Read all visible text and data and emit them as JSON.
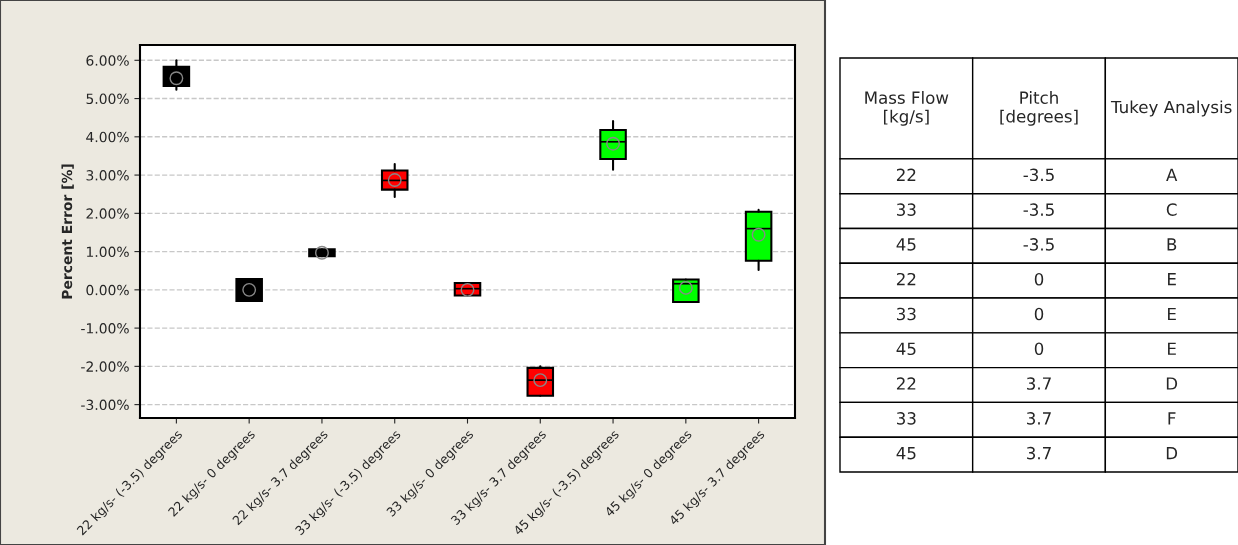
{
  "chart_data": [
    {
      "type": "box",
      "ylabel": "Percent Error [%]",
      "categories": [
        "22 kg/s- (-3.5) degrees",
        "22 kg/s- 0 degrees",
        "22 kg/s- 3.7 degrees",
        "33 kg/s- (-3.5) degrees",
        "33 kg/s- 0 degrees",
        "33 kg/s- 3.7 degrees",
        "45 kg/s- (-3.5) degrees",
        "45 kg/s- 0 degrees",
        "45 kg/s- 3.7 degrees"
      ],
      "boxes": [
        {
          "low": 5.23,
          "q1": 5.33,
          "median": 5.55,
          "q3": 5.83,
          "high": 6.0,
          "mean": 5.53
        },
        {
          "low": -0.29,
          "q1": -0.29,
          "median": 0.0,
          "q3": 0.28,
          "high": 0.28,
          "mean": 0.0
        },
        {
          "low": 0.88,
          "q1": 0.88,
          "median": 0.97,
          "q3": 1.06,
          "high": 1.06,
          "mean": 0.97
        },
        {
          "low": 2.43,
          "q1": 2.62,
          "median": 2.86,
          "q3": 3.12,
          "high": 3.29,
          "mean": 2.87
        },
        {
          "low": -0.15,
          "q1": -0.15,
          "median": 0.03,
          "q3": 0.18,
          "high": 0.18,
          "mean": 0.0
        },
        {
          "low": -2.77,
          "q1": -2.77,
          "median": -2.36,
          "q3": -2.04,
          "high": -2.0,
          "mean": -2.36
        },
        {
          "low": 3.14,
          "q1": 3.42,
          "median": 3.87,
          "q3": 4.18,
          "high": 4.41,
          "mean": 3.82
        },
        {
          "low": -0.32,
          "q1": -0.32,
          "median": 0.16,
          "q3": 0.27,
          "high": 0.27,
          "mean": 0.05
        },
        {
          "low": 0.52,
          "q1": 0.76,
          "median": 1.6,
          "q3": 2.04,
          "high": 2.09,
          "mean": 1.44
        }
      ],
      "colors": [
        "#000000",
        "#000000",
        "#000000",
        "#ff0000",
        "#ff0000",
        "#ff0000",
        "#00ff00",
        "#00ff00",
        "#00ff00"
      ],
      "ylim": [
        -3.35,
        6.4
      ],
      "yticks": [
        {
          "value": -3,
          "label": "-3.00%"
        },
        {
          "value": -2,
          "label": "-2.00%"
        },
        {
          "value": -1,
          "label": "-1.00%"
        },
        {
          "value": 0,
          "label": "0.00%"
        },
        {
          "value": 1,
          "label": "1.00%"
        },
        {
          "value": 2,
          "label": "2.00%"
        },
        {
          "value": 3,
          "label": "3.00%"
        },
        {
          "value": 4,
          "label": "4.00%"
        },
        {
          "value": 5,
          "label": "5.00%"
        },
        {
          "value": 6,
          "label": "6.00%"
        }
      ],
      "grid": "y",
      "marker": "circle"
    },
    {
      "type": "other",
      "categories": [
        "Mass Flow [kg/s]",
        "Pitch [degrees]",
        "Tukey Analysis"
      ],
      "cell_labels": [
        [
          "22",
          "-3.5",
          "A"
        ],
        [
          "33",
          "-3.5",
          "C"
        ],
        [
          "45",
          "-3.5",
          "B"
        ],
        [
          "22",
          "0",
          "E"
        ],
        [
          "33",
          "0",
          "E"
        ],
        [
          "45",
          "0",
          "E"
        ],
        [
          "22",
          "3.7",
          "D"
        ],
        [
          "33",
          "3.7",
          "F"
        ],
        [
          "45",
          "3.7",
          "D"
        ]
      ]
    }
  ]
}
